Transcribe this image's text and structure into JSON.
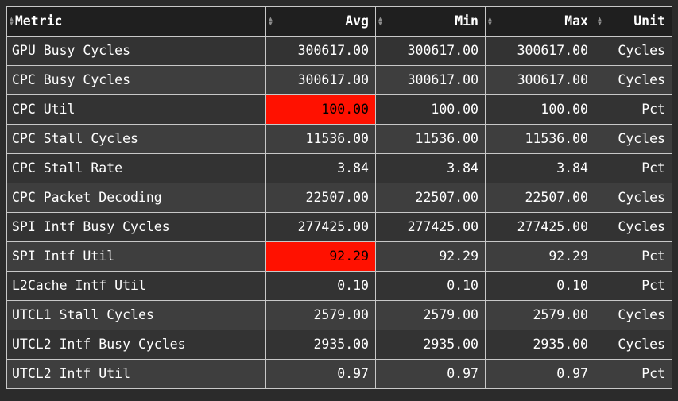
{
  "icons": {
    "sort_up": "▲",
    "sort_down": "▼"
  },
  "colors": {
    "page_bg": "#2b2b2b",
    "header_bg": "#1f1f1f",
    "row_odd_bg": "#333333",
    "row_even_bg": "#3e3e3e",
    "border": "#c8c8c8",
    "text": "#ffffff",
    "highlight_bg": "#ff1100",
    "highlight_text": "#000000",
    "sort_icon": "#8c8c8c"
  },
  "table": {
    "columns": [
      {
        "label": "Metric",
        "align": "left"
      },
      {
        "label": "Avg",
        "align": "right"
      },
      {
        "label": "Min",
        "align": "right"
      },
      {
        "label": "Max",
        "align": "right"
      },
      {
        "label": "Unit",
        "align": "right"
      }
    ],
    "rows": [
      {
        "metric": "GPU Busy Cycles",
        "avg": "300617.00",
        "min": "300617.00",
        "max": "300617.00",
        "unit": "Cycles"
      },
      {
        "metric": "CPC Busy Cycles",
        "avg": "300617.00",
        "min": "300617.00",
        "max": "300617.00",
        "unit": "Cycles"
      },
      {
        "metric": "CPC Util",
        "avg": "100.00",
        "min": "100.00",
        "max": "100.00",
        "unit": "Pct"
      },
      {
        "metric": "CPC Stall Cycles",
        "avg": "11536.00",
        "min": "11536.00",
        "max": "11536.00",
        "unit": "Cycles"
      },
      {
        "metric": "CPC Stall Rate",
        "avg": "3.84",
        "min": "3.84",
        "max": "3.84",
        "unit": "Pct"
      },
      {
        "metric": "CPC Packet Decoding",
        "avg": "22507.00",
        "min": "22507.00",
        "max": "22507.00",
        "unit": "Cycles"
      },
      {
        "metric": "SPI Intf Busy Cycles",
        "avg": "277425.00",
        "min": "277425.00",
        "max": "277425.00",
        "unit": "Cycles"
      },
      {
        "metric": "SPI Intf Util",
        "avg": "92.29",
        "min": "92.29",
        "max": "92.29",
        "unit": "Pct"
      },
      {
        "metric": "L2Cache Intf Util",
        "avg": "0.10",
        "min": "0.10",
        "max": "0.10",
        "unit": "Pct"
      },
      {
        "metric": "UTCL1 Stall Cycles",
        "avg": "2579.00",
        "min": "2579.00",
        "max": "2579.00",
        "unit": "Cycles"
      },
      {
        "metric": "UTCL2 Intf Busy Cycles",
        "avg": "2935.00",
        "min": "2935.00",
        "max": "2935.00",
        "unit": "Cycles"
      },
      {
        "metric": "UTCL2 Intf Util",
        "avg": "0.97",
        "min": "0.97",
        "max": "0.97",
        "unit": "Pct"
      }
    ],
    "highlighted_cells": [
      {
        "row": 2,
        "column": "avg"
      },
      {
        "row": 7,
        "column": "avg"
      }
    ]
  }
}
